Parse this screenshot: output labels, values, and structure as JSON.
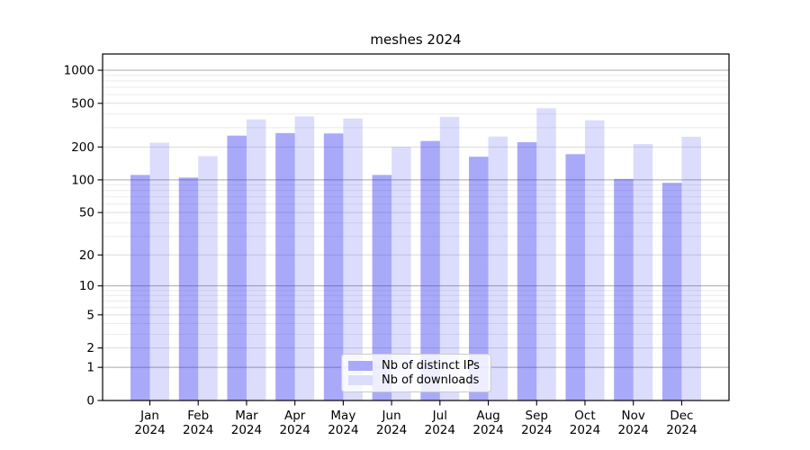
{
  "chart_data": {
    "type": "bar",
    "title": "meshes 2024",
    "categories": [
      "Jan 2024",
      "Feb 2024",
      "Mar 2024",
      "Apr 2024",
      "May 2024",
      "Jun 2024",
      "Jul 2024",
      "Aug 2024",
      "Sep 2024",
      "Oct 2024",
      "Nov 2024",
      "Dec 2024"
    ],
    "series": [
      {
        "name": "Nb of distinct IPs",
        "color": "#2828f0",
        "alpha": 0.4,
        "swatch_hex": "#a9a9f9",
        "values": [
          111,
          105,
          254,
          268,
          266,
          111,
          227,
          163,
          221,
          172,
          102,
          94
        ]
      },
      {
        "name": "Nb of downloads",
        "color": "#2828f0",
        "alpha": 0.165,
        "swatch_hex": "#dcdcfc",
        "values": [
          219,
          165,
          357,
          380,
          364,
          200,
          376,
          249,
          451,
          350,
          213,
          248
        ]
      }
    ],
    "yscale": "log1p",
    "yticks": [
      0,
      1,
      2,
      5,
      10,
      20,
      50,
      100,
      200,
      500,
      1000
    ],
    "ylim": [
      0,
      1400
    ],
    "xlabel": "",
    "ylabel": "",
    "grid": "both",
    "legend_position": "lower center",
    "axis_color": "#000000",
    "major_grid_color": "#a9a9a9",
    "mid_grid_color": "#dcdcdc",
    "minor_grid_color": "#ebebeb"
  }
}
